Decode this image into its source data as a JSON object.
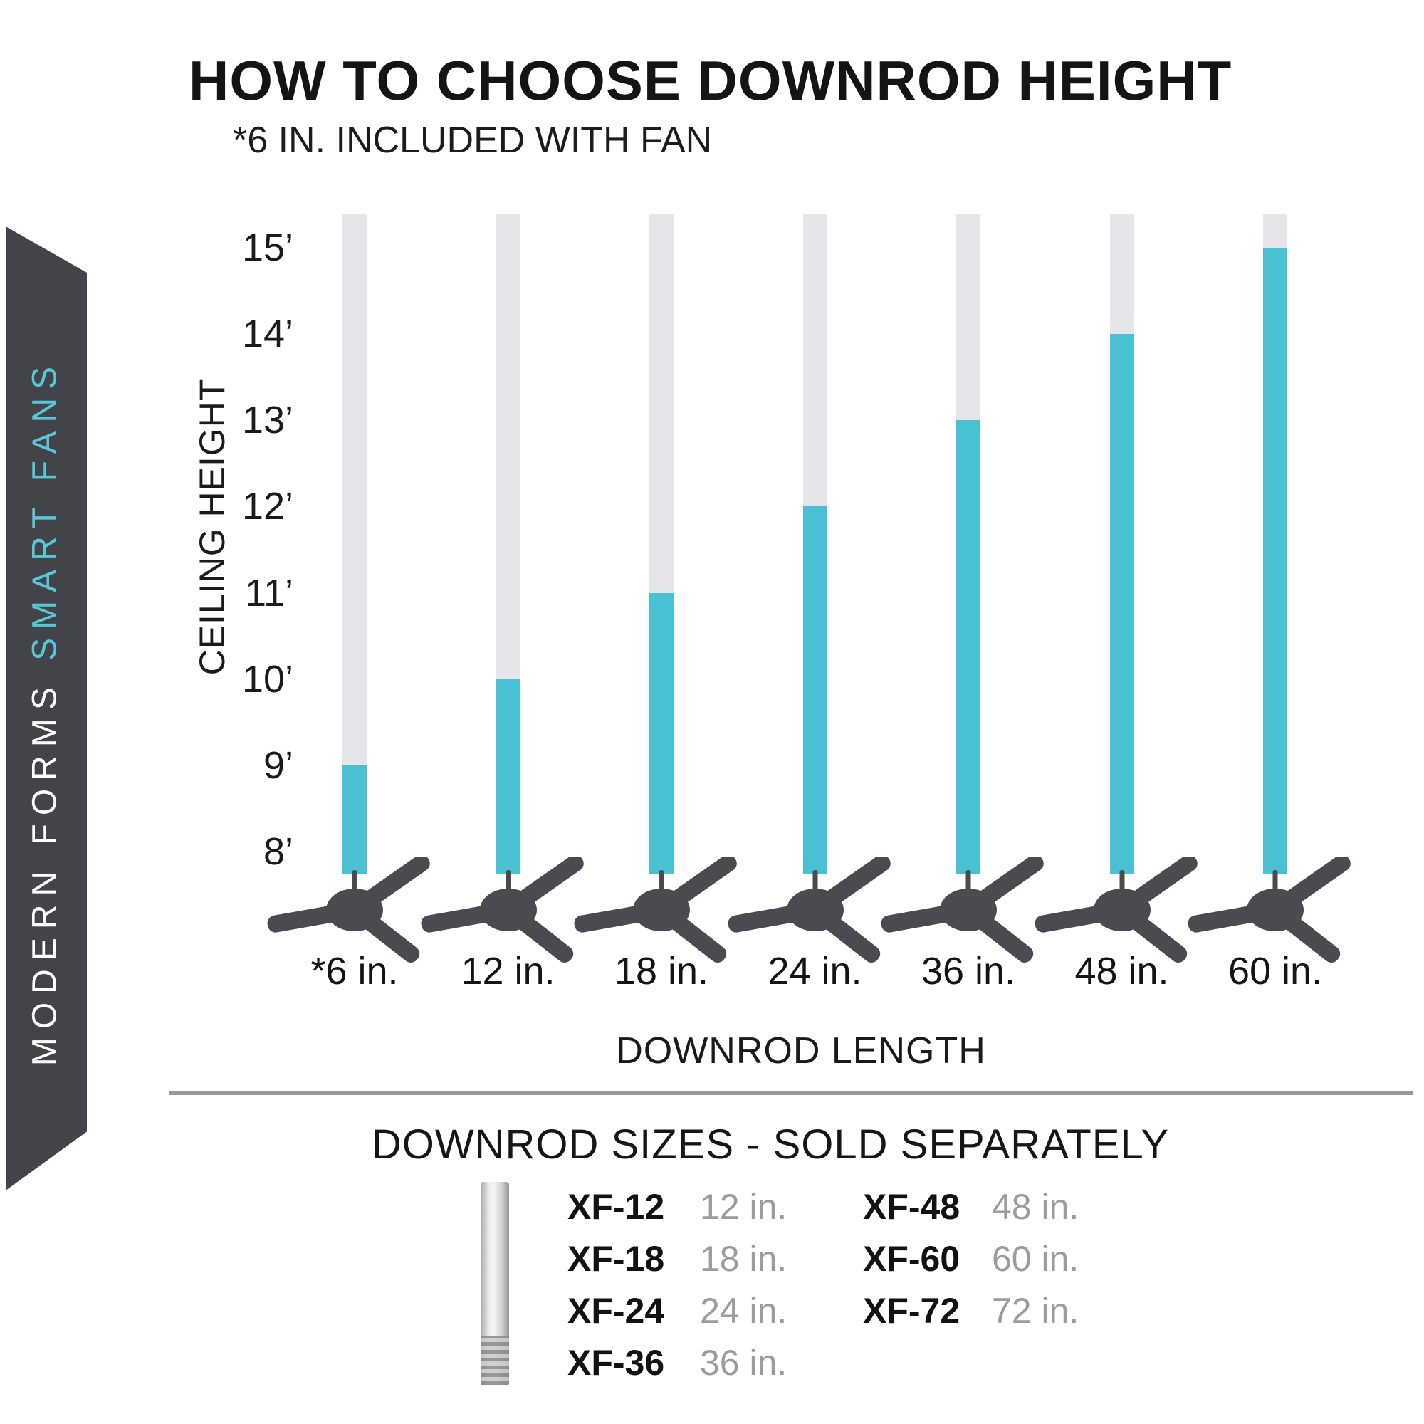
{
  "header": {
    "title": "HOW TO CHOOSE DOWNROD HEIGHT",
    "subtitle": "*6 IN. INCLUDED WITH FAN"
  },
  "sidebar": {
    "brand": "MODERN FORMS ",
    "tagline": "SMART FANS",
    "bg_color": "#434449",
    "brand_color": "#ffffff",
    "tagline_color": "#58c7d6"
  },
  "chart_data": {
    "type": "bar",
    "title": "HOW TO CHOOSE DOWNROD HEIGHT",
    "note": "*6 IN. INCLUDED WITH FAN",
    "xlabel": "DOWNROD LENGTH",
    "ylabel": "CEILING HEIGHT",
    "categories": [
      "*6 in.",
      "12 in.",
      "18 in.",
      "24 in.",
      "36 in.",
      "48 in.",
      "60 in."
    ],
    "values_ft": [
      9,
      10,
      11,
      12,
      13,
      14,
      15
    ],
    "y_ticks": [
      "15’",
      "14’",
      "13’",
      "12’",
      "11’",
      "10’",
      "9’",
      "8’"
    ],
    "y_tick_values": [
      15,
      14,
      13,
      12,
      11,
      10,
      9,
      8
    ],
    "ylim_ft": [
      8,
      15
    ],
    "grid": false,
    "legend": false,
    "bar_track_color": "#e4e6e9",
    "bar_fill_color": "#4ac1d3",
    "fan_color": "#4a4b50"
  },
  "divider_color": "#9a9a9a",
  "downrod_table": {
    "heading": "DOWNROD SIZES - SOLD SEPARATELY",
    "columns": [
      {
        "rows": [
          {
            "code": "XF-12",
            "size": "12 in."
          },
          {
            "code": "XF-18",
            "size": "18 in."
          },
          {
            "code": "XF-24",
            "size": "24 in."
          },
          {
            "code": "XF-36",
            "size": "36 in."
          }
        ]
      },
      {
        "rows": [
          {
            "code": "XF-48",
            "size": "48 in."
          },
          {
            "code": "XF-60",
            "size": "60 in."
          },
          {
            "code": "XF-72",
            "size": "72 in."
          }
        ]
      }
    ]
  }
}
